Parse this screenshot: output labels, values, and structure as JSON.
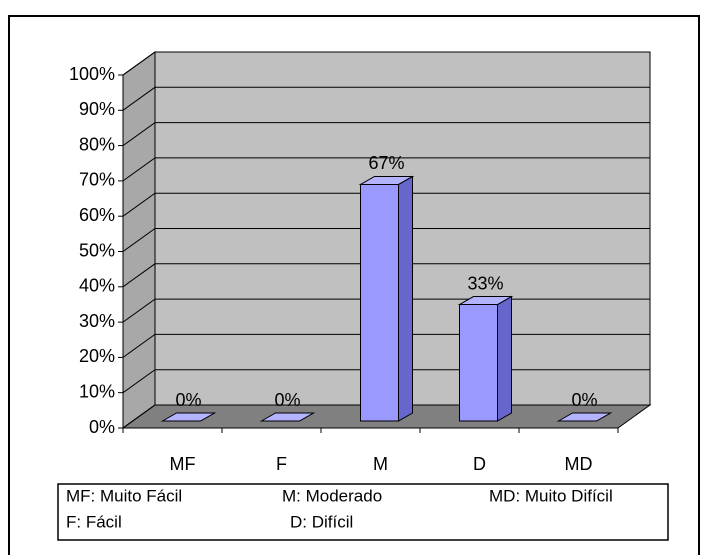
{
  "chart_data": {
    "type": "bar3d",
    "categories": [
      "MF",
      "F",
      "M",
      "D",
      "MD"
    ],
    "values": [
      0,
      0,
      67,
      33,
      0
    ],
    "value_labels": [
      "0%",
      "0%",
      "67%",
      "33%",
      "0%"
    ],
    "color": "#9999ff",
    "ylim": [
      0,
      100
    ],
    "yticks": [
      {
        "value": 0,
        "label": "0%"
      },
      {
        "value": 10,
        "label": "10%"
      },
      {
        "value": 20,
        "label": "20%"
      },
      {
        "value": 30,
        "label": "30%"
      },
      {
        "value": 40,
        "label": "40%"
      },
      {
        "value": 50,
        "label": "50%"
      },
      {
        "value": 60,
        "label": "60%"
      },
      {
        "value": 70,
        "label": "70%"
      },
      {
        "value": 80,
        "label": "80%"
      },
      {
        "value": 90,
        "label": "90%"
      },
      {
        "value": 100,
        "label": "100%"
      }
    ],
    "grid": true,
    "legend_notes": [
      "MF: Muito Fácil",
      "M: Moderado",
      "MD: Muito Difícil",
      "F: Fácil",
      "D: Difícil"
    ]
  }
}
